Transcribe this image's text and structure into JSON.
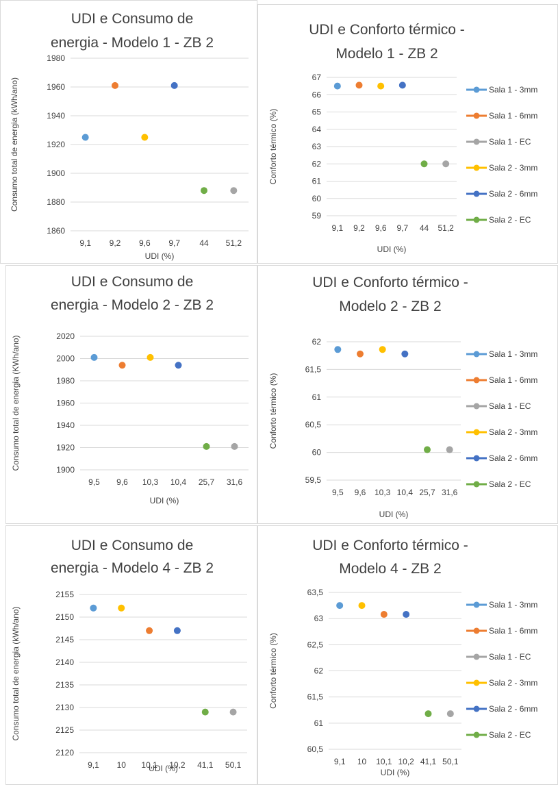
{
  "colors": {
    "Sala 1 - 3mm": "#5b9bd5",
    "Sala 1 - 6mm": "#ed7d31",
    "Sala 1 - EC": "#a5a5a5",
    "Sala 2 - 3mm": "#ffc000",
    "Sala 2 - 6mm": "#4472c4",
    "Sala 2 - EC": "#70ad47"
  },
  "legend": [
    "Sala 1 - 3mm",
    "Sala 1 - 6mm",
    "Sala 1 - EC",
    "Sala 2 - 3mm",
    "Sala 2 - 6mm",
    "Sala 2 - EC"
  ],
  "chart_data": [
    {
      "type": "scatter",
      "title_lines": [
        "UDI e Consumo de",
        "energia - Modelo 1 - ZB 2"
      ],
      "xlabel": "UDI (%)",
      "ylabel": "Consumo total de energia (kWh/ano)",
      "categories": [
        "9,1",
        "9,2",
        "9,6",
        "9,7",
        "44",
        "51,2"
      ],
      "y_ticks": [
        "1860",
        "1880",
        "1900",
        "1920",
        "1940",
        "1960",
        "1980"
      ],
      "ylim": [
        1860,
        1980
      ],
      "legend": "none",
      "grid": true,
      "points": [
        {
          "series": "Sala 1 - 3mm",
          "x": "9,1",
          "y": 1925
        },
        {
          "series": "Sala 1 - 6mm",
          "x": "9,2",
          "y": 1961
        },
        {
          "series": "Sala 2 - 3mm",
          "x": "9,6",
          "y": 1925
        },
        {
          "series": "Sala 2 - 6mm",
          "x": "9,7",
          "y": 1961
        },
        {
          "series": "Sala 2 - EC",
          "x": "44",
          "y": 1888
        },
        {
          "series": "Sala 1 - EC",
          "x": "51,2",
          "y": 1888
        }
      ]
    },
    {
      "type": "scatter",
      "title_lines": [
        "UDI e Conforto térmico -",
        "Modelo 1 - ZB 2"
      ],
      "xlabel": "UDI (%)",
      "ylabel": "Conforto térmico (%)",
      "categories": [
        "9,1",
        "9,2",
        "9,6",
        "9,7",
        "44",
        "51,2"
      ],
      "y_ticks": [
        "59",
        "60",
        "61",
        "62",
        "63",
        "64",
        "65",
        "66",
        "67"
      ],
      "ylim": [
        59,
        67
      ],
      "legend": "right",
      "grid": true,
      "points": [
        {
          "series": "Sala 1 - 3mm",
          "x": "9,1",
          "y": 66.5
        },
        {
          "series": "Sala 1 - 6mm",
          "x": "9,2",
          "y": 66.55
        },
        {
          "series": "Sala 2 - 3mm",
          "x": "9,6",
          "y": 66.5
        },
        {
          "series": "Sala 2 - 6mm",
          "x": "9,7",
          "y": 66.55
        },
        {
          "series": "Sala 2 - EC",
          "x": "44",
          "y": 62
        },
        {
          "series": "Sala 1 - EC",
          "x": "51,2",
          "y": 62
        }
      ]
    },
    {
      "type": "scatter",
      "title_lines": [
        "UDI e Consumo de",
        "energia - Modelo 2 - ZB 2"
      ],
      "xlabel": "UDI (%)",
      "ylabel": "Consumo total de energia (KWh/ano)",
      "categories": [
        "9,5",
        "9,6",
        "10,3",
        "10,4",
        "25,7",
        "31,6"
      ],
      "y_ticks": [
        "1900",
        "1920",
        "1940",
        "1960",
        "1980",
        "2000",
        "2020"
      ],
      "ylim": [
        1900,
        2020
      ],
      "legend": "none",
      "grid": true,
      "points": [
        {
          "series": "Sala 1 - 3mm",
          "x": "9,5",
          "y": 2001
        },
        {
          "series": "Sala 1 - 6mm",
          "x": "9,6",
          "y": 1994
        },
        {
          "series": "Sala 2 - 3mm",
          "x": "10,3",
          "y": 2001
        },
        {
          "series": "Sala 2 - 6mm",
          "x": "10,4",
          "y": 1994
        },
        {
          "series": "Sala 2 - EC",
          "x": "25,7",
          "y": 1921
        },
        {
          "series": "Sala 1 - EC",
          "x": "31,6",
          "y": 1921
        }
      ]
    },
    {
      "type": "scatter",
      "title_lines": [
        "UDI e Conforto térmico -",
        "Modelo 2 - ZB 2"
      ],
      "xlabel": "UDI (%)",
      "ylabel": "Conforto térmico (%)",
      "categories": [
        "9,5",
        "9,6",
        "10,3",
        "10,4",
        "25,7",
        "31,6"
      ],
      "y_ticks": [
        "59,5",
        "60",
        "60,5",
        "61",
        "61,5",
        "62"
      ],
      "ylim": [
        59.5,
        62
      ],
      "legend": "right",
      "grid": true,
      "points": [
        {
          "series": "Sala 1 - 3mm",
          "x": "9,5",
          "y": 61.86
        },
        {
          "series": "Sala 1 - 6mm",
          "x": "9,6",
          "y": 61.78
        },
        {
          "series": "Sala 2 - 3mm",
          "x": "10,3",
          "y": 61.86
        },
        {
          "series": "Sala 2 - 6mm",
          "x": "10,4",
          "y": 61.78
        },
        {
          "series": "Sala 2 - EC",
          "x": "25,7",
          "y": 60.05
        },
        {
          "series": "Sala 1 - EC",
          "x": "31,6",
          "y": 60.05
        }
      ]
    },
    {
      "type": "scatter",
      "title_lines": [
        "UDI e Consumo de",
        "energia - Modelo 4 - ZB 2"
      ],
      "xlabel": "UDI (%)",
      "ylabel": "Consumo total de energia (kWh/ano)",
      "categories": [
        "9,1",
        "10",
        "10,1",
        "10,2",
        "41,1",
        "50,1"
      ],
      "y_ticks": [
        "2120",
        "2125",
        "2130",
        "2135",
        "2140",
        "2145",
        "2150",
        "2155"
      ],
      "ylim": [
        2120,
        2155
      ],
      "legend": "none",
      "grid": true,
      "points": [
        {
          "series": "Sala 1 - 3mm",
          "x": "9,1",
          "y": 2152
        },
        {
          "series": "Sala 2 - 3mm",
          "x": "10",
          "y": 2152
        },
        {
          "series": "Sala 1 - 6mm",
          "x": "10,1",
          "y": 2147
        },
        {
          "series": "Sala 2 - 6mm",
          "x": "10,2",
          "y": 2147
        },
        {
          "series": "Sala 2 - EC",
          "x": "41,1",
          "y": 2129
        },
        {
          "series": "Sala 1 - EC",
          "x": "50,1",
          "y": 2129
        }
      ]
    },
    {
      "type": "scatter",
      "title_lines": [
        "UDI e Conforto térmico -",
        "Modelo 4 - ZB 2"
      ],
      "xlabel": "UDI (%)",
      "ylabel": "Conforto térmico (%)",
      "categories": [
        "9,1",
        "10",
        "10,1",
        "10,2",
        "41,1",
        "50,1"
      ],
      "y_ticks": [
        "60,5",
        "61",
        "61,5",
        "62",
        "62,5",
        "63",
        "63,5"
      ],
      "ylim": [
        60.5,
        63.5
      ],
      "legend": "right",
      "grid": true,
      "points": [
        {
          "series": "Sala 1 - 3mm",
          "x": "9,1",
          "y": 63.25
        },
        {
          "series": "Sala 2 - 3mm",
          "x": "10",
          "y": 63.25
        },
        {
          "series": "Sala 1 - 6mm",
          "x": "10,1",
          "y": 63.08
        },
        {
          "series": "Sala 2 - 6mm",
          "x": "10,2",
          "y": 63.08
        },
        {
          "series": "Sala 2 - EC",
          "x": "41,1",
          "y": 61.18
        },
        {
          "series": "Sala 1 - EC",
          "x": "50,1",
          "y": 61.18
        }
      ]
    }
  ]
}
